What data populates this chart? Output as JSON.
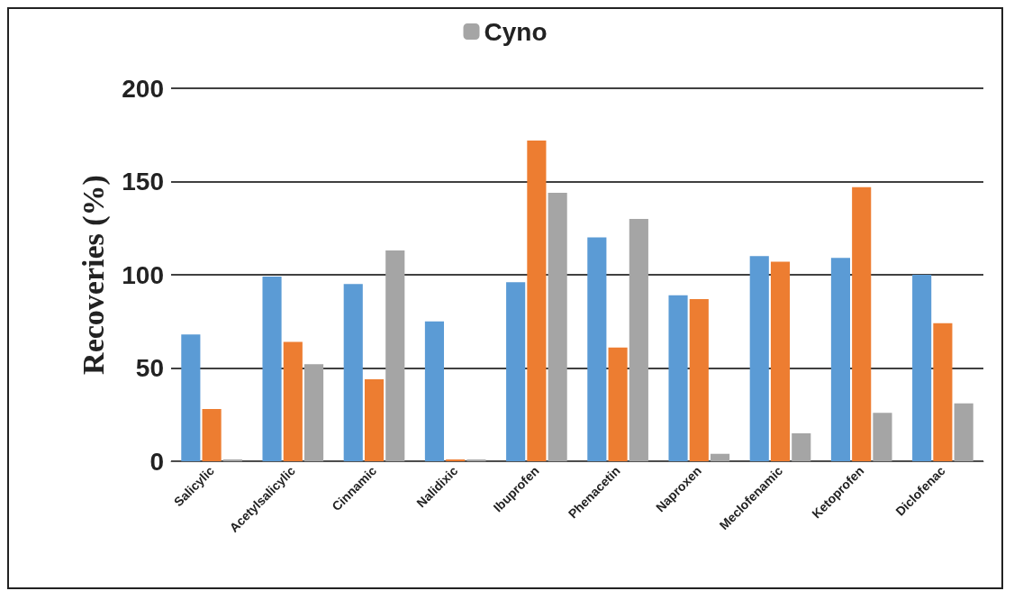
{
  "chart_data": {
    "type": "bar",
    "ylabel": "Recoveries (%)",
    "categories": [
      "Salicylic",
      "Acetylsalicylic",
      "Cinnamic",
      "Nalidixic",
      "Ibuprofen",
      "Phenacetin",
      "Naproxen",
      "Meclofenamic",
      "Ketoprofen",
      "Diclofenac"
    ],
    "series": [
      {
        "color": "#5b9bd5",
        "values": [
          68,
          99,
          95,
          75,
          96,
          120,
          89,
          110,
          109,
          100
        ]
      },
      {
        "color": "#ed7d31",
        "values": [
          28,
          64,
          44,
          1,
          172,
          61,
          87,
          107,
          147,
          74
        ]
      },
      {
        "name": "Cyno",
        "color": "#a5a5a5",
        "values": [
          1,
          52,
          113,
          1,
          144,
          130,
          4,
          15,
          26,
          31
        ]
      }
    ],
    "ylim": [
      0,
      200
    ],
    "yticks": [
      0,
      50,
      100,
      150,
      200
    ],
    "grid": "y",
    "legend": "top"
  }
}
